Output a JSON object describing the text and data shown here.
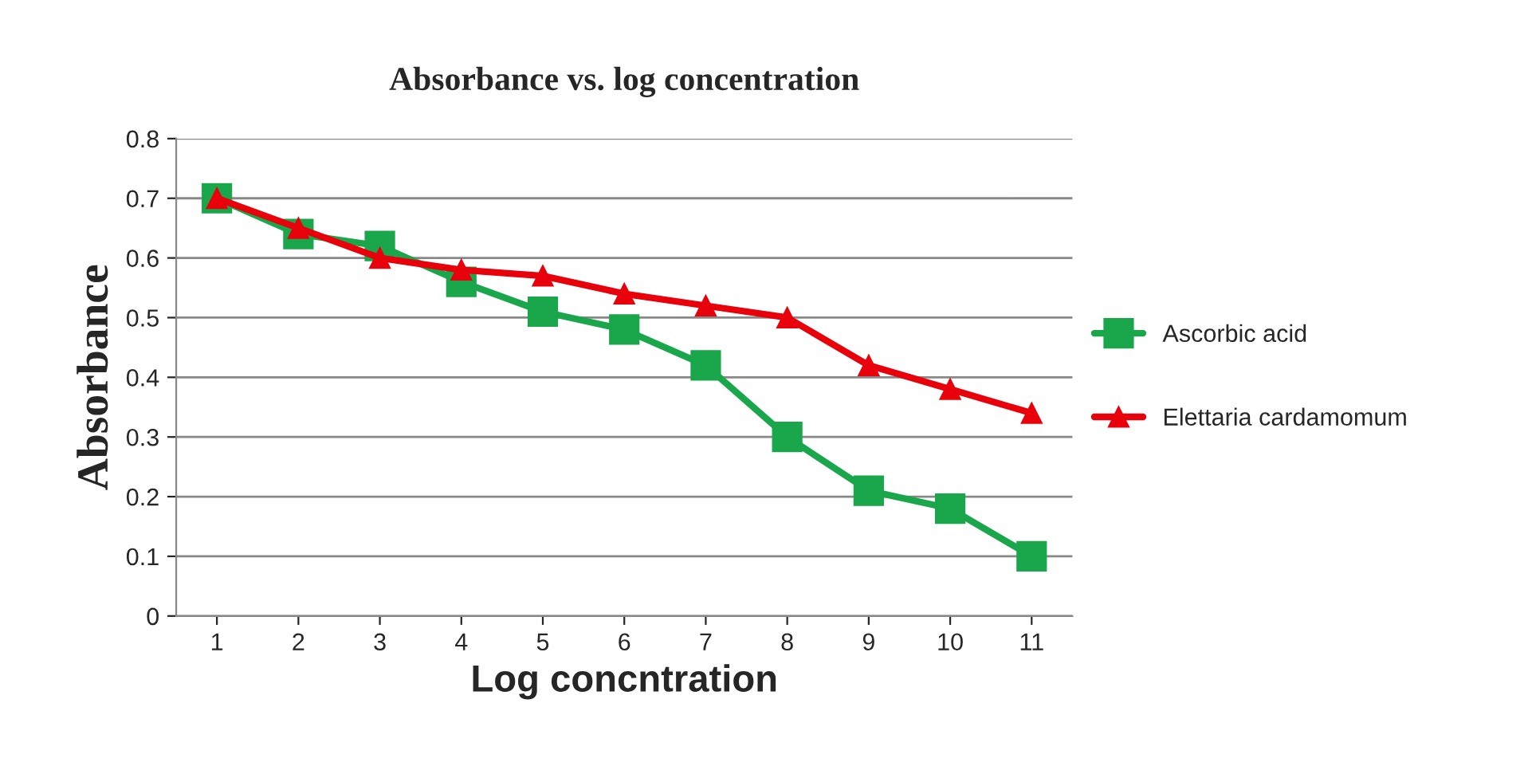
{
  "chart_data": {
    "type": "line",
    "title": "Absorbance vs. log concentration",
    "xlabel": "Log concntration",
    "ylabel": "Absorbance",
    "categories": [
      "1",
      "2",
      "3",
      "4",
      "5",
      "6",
      "7",
      "8",
      "9",
      "10",
      "11"
    ],
    "series": [
      {
        "name": "Ascorbic acid",
        "color": "#1aa64b",
        "marker": "square",
        "values": [
          0.7,
          0.64,
          0.62,
          0.56,
          0.51,
          0.48,
          0.42,
          0.3,
          0.21,
          0.18,
          0.1
        ]
      },
      {
        "name": "Elettaria cardamomum",
        "color": "#e8000b",
        "marker": "triangle",
        "values": [
          0.7,
          0.65,
          0.6,
          0.58,
          0.57,
          0.54,
          0.52,
          0.5,
          0.42,
          0.38,
          0.34
        ]
      }
    ],
    "ylim": [
      0,
      0.8
    ],
    "yticks": [
      {
        "value": 0,
        "label": "0"
      },
      {
        "value": 0.1,
        "label": "0.1"
      },
      {
        "value": 0.2,
        "label": "0.2"
      },
      {
        "value": 0.3,
        "label": "0.3"
      },
      {
        "value": 0.4,
        "label": "0.4"
      },
      {
        "value": 0.5,
        "label": "0.5"
      },
      {
        "value": 0.6,
        "label": "0.6"
      },
      {
        "value": 0.7,
        "label": "0.7"
      },
      {
        "value": 0.8,
        "label": "0.8"
      }
    ],
    "grid": "y",
    "legend": "right",
    "line_style": "solid"
  }
}
